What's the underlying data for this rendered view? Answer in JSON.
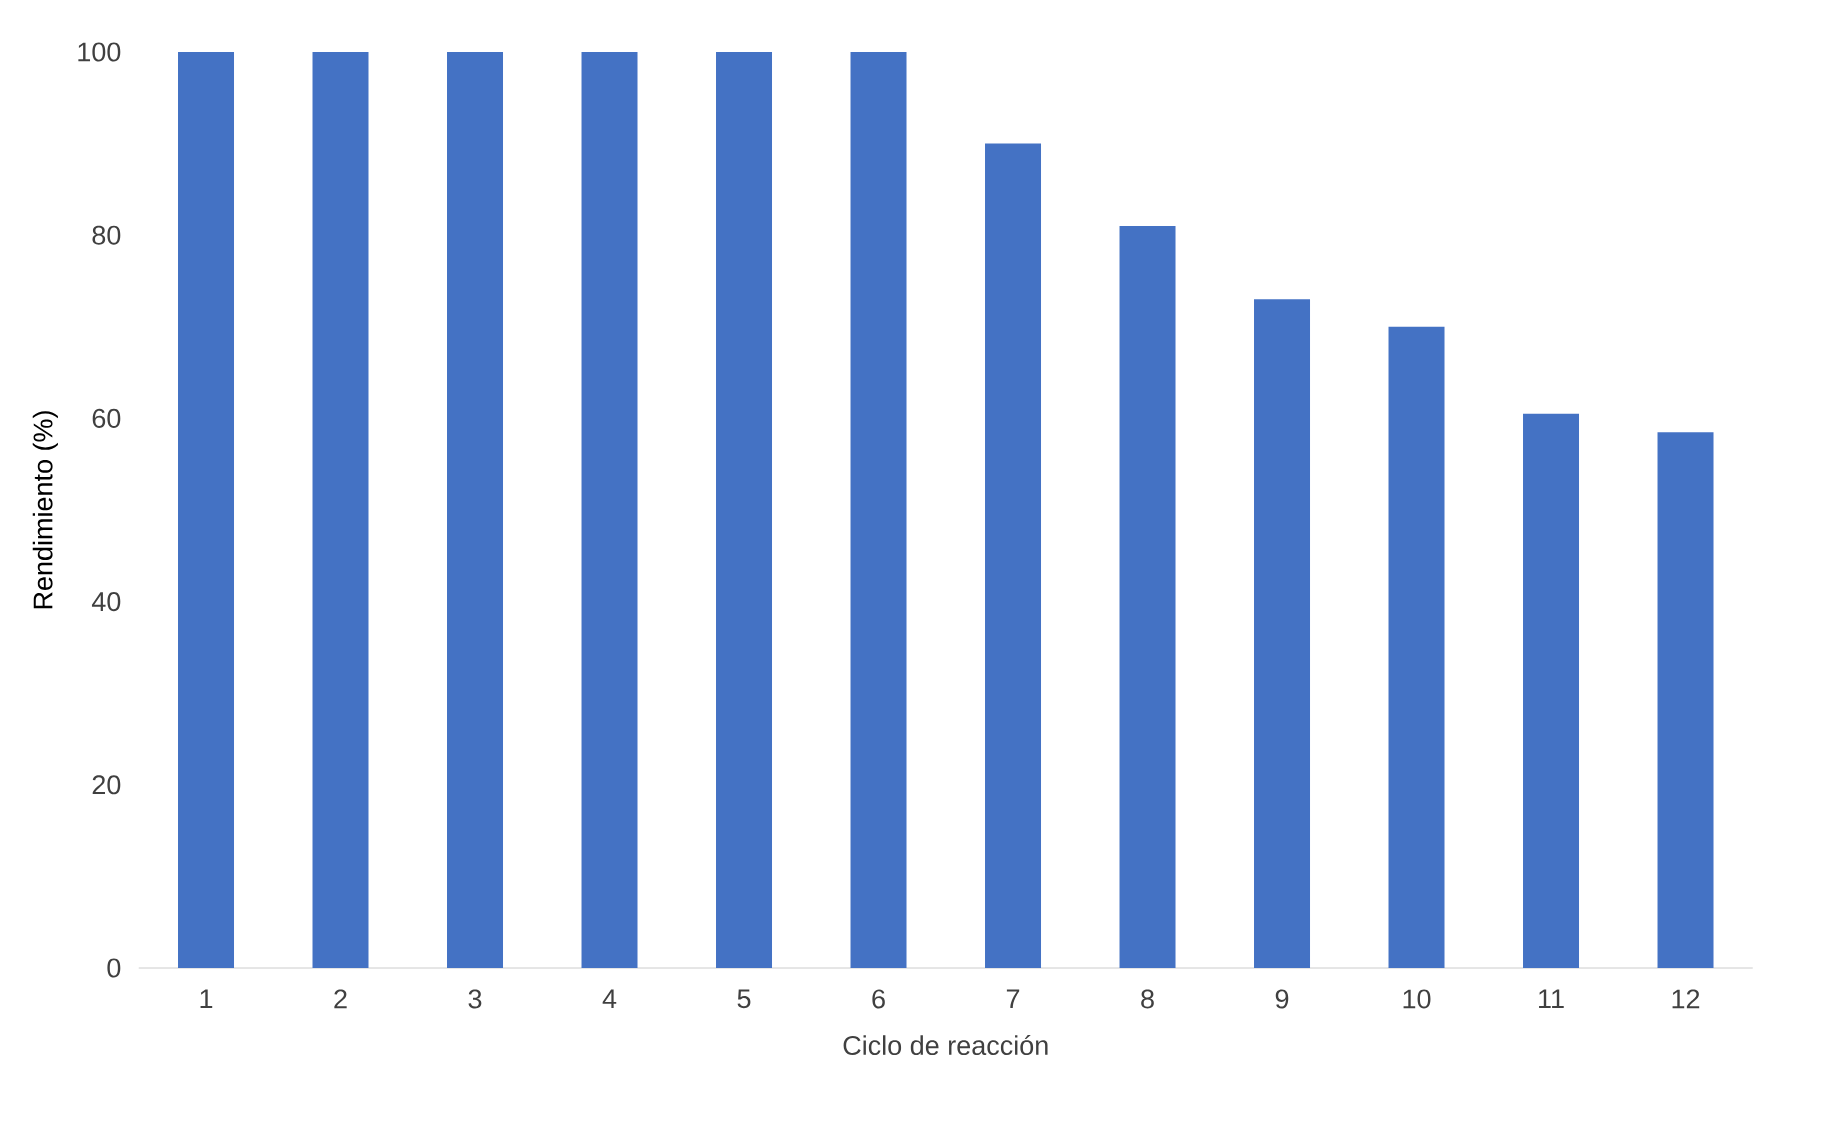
{
  "chart_data": {
    "type": "bar",
    "xlabel": "Ciclo de reacción",
    "ylabel": "Rendimiento (%)",
    "categories": [
      "1",
      "2",
      "3",
      "4",
      "5",
      "6",
      "7",
      "8",
      "9",
      "10",
      "11",
      "12"
    ],
    "values": [
      100,
      100,
      100,
      100,
      100,
      100,
      90,
      81,
      73,
      70,
      60.5,
      58.5
    ],
    "color": "#4472c4",
    "ylim": [
      0,
      100
    ],
    "yticks": [
      0,
      20,
      40,
      60,
      80,
      100
    ]
  }
}
